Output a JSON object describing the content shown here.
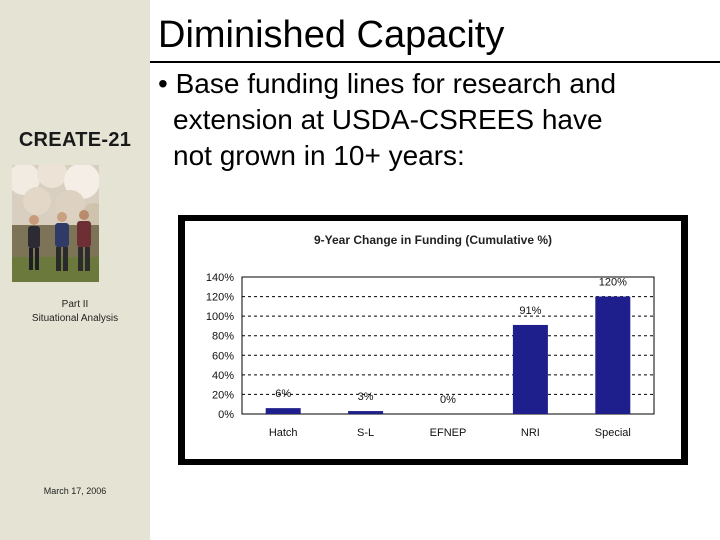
{
  "slide": {
    "title": "Diminished Capacity",
    "bullet": {
      "marker": "•",
      "lines": [
        "Base funding lines for research and",
        "extension at USDA-CSREES have",
        "not grown in 10+ years:"
      ]
    }
  },
  "sidebar": {
    "program": "CREATE-21",
    "photo_icon": "people-in-orchard-photo",
    "part": "Part II",
    "section": "Situational Analysis",
    "date": "March 17, 2006"
  },
  "chart_data": {
    "type": "bar",
    "title": "9-Year Change in Funding (Cumulative %)",
    "categories": [
      "Hatch",
      "S-L",
      "EFNEP",
      "NRI",
      "Special"
    ],
    "values": [
      6,
      3,
      0,
      91,
      120
    ],
    "data_labels": [
      "6%",
      "3%",
      "0%",
      "91%",
      "120%"
    ],
    "ylim": [
      0,
      140
    ],
    "yticks": [
      0,
      20,
      40,
      60,
      80,
      100,
      120,
      140
    ],
    "ytick_labels": [
      "0%",
      "20%",
      "40%",
      "60%",
      "80%",
      "100%",
      "120%",
      "140%"
    ],
    "xlabel": "",
    "ylabel": "",
    "grid": true,
    "colors": {
      "bar": "#1e1f8c",
      "frame": "#000000",
      "plot_bg": "#ffffff",
      "grid": "#000000"
    }
  }
}
